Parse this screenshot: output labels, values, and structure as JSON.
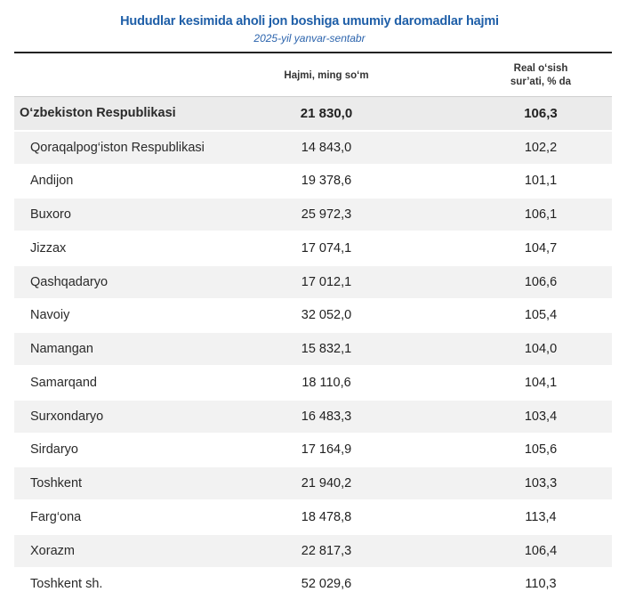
{
  "title": "Hududlar kesimida aholi jon boshiga umumiy daromadlar hajmi",
  "subtitle": "2025-yil yanvar-sentabr",
  "columns": {
    "volume": "Hajmi, ming so‘m",
    "growth_line1": "Real o‘sish",
    "growth_line2": "sur’ati, % da"
  },
  "total": {
    "name": "O‘zbekiston Respublikasi",
    "volume": "21 830,0",
    "growth": "106,3"
  },
  "rows": [
    {
      "name": "Qoraqalpog‘iston Respublikasi",
      "volume": "14 843,0",
      "growth": "102,2"
    },
    {
      "name": "Andijon",
      "volume": "19 378,6",
      "growth": "101,1"
    },
    {
      "name": "Buxoro",
      "volume": "25 972,3",
      "growth": "106,1"
    },
    {
      "name": "Jizzax",
      "volume": "17 074,1",
      "growth": "104,7"
    },
    {
      "name": "Qashqadaryo",
      "volume": "17 012,1",
      "growth": "106,6"
    },
    {
      "name": "Navoiy",
      "volume": "32 052,0",
      "growth": "105,4"
    },
    {
      "name": "Namangan",
      "volume": "15 832,1",
      "growth": "104,0"
    },
    {
      "name": "Samarqand",
      "volume": "18 110,6",
      "growth": "104,1"
    },
    {
      "name": "Surxondaryo",
      "volume": "16 483,3",
      "growth": "103,4"
    },
    {
      "name": "Sirdaryo",
      "volume": "17 164,9",
      "growth": "105,6"
    },
    {
      "name": "Toshkent",
      "volume": "21 940,2",
      "growth": "103,3"
    },
    {
      "name": "Farg‘ona",
      "volume": "18 478,8",
      "growth": "113,4"
    },
    {
      "name": "Xorazm",
      "volume": "22 817,3",
      "growth": "106,4"
    },
    {
      "name": "Toshkent sh.",
      "volume": "52 029,6",
      "growth": "110,3"
    }
  ]
}
